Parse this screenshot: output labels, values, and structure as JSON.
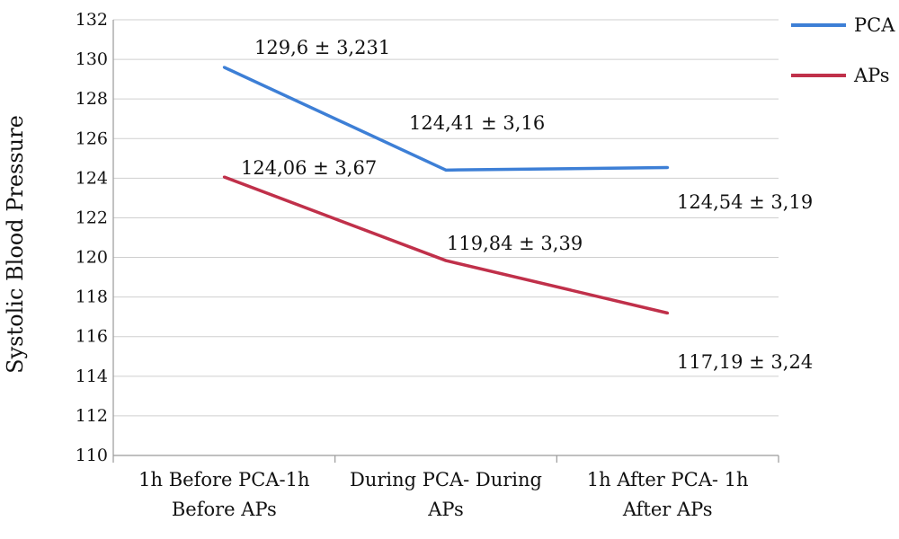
{
  "chart_data": {
    "type": "line",
    "title": "",
    "xlabel": "",
    "ylabel": "Systolic Blood Pressure",
    "ylim": [
      110,
      132
    ],
    "ytick_step": 2,
    "grid": true,
    "legend_position": "top-right",
    "categories": [
      [
        "1h Before PCA-1h",
        "Before APs"
      ],
      [
        "During PCA- During",
        "APs"
      ],
      [
        "1h After PCA- 1h",
        "After APs"
      ]
    ],
    "series": [
      {
        "name": "PCA",
        "color": "#3d7fd6",
        "values": [
          129.6,
          124.41,
          124.54
        ],
        "labels": [
          "129,6 ± 3,231",
          "124,41 ± 3,16",
          "124,54 ± 3,19"
        ]
      },
      {
        "name": "APs",
        "color": "#c0304a",
        "values": [
          124.06,
          119.84,
          117.19
        ],
        "labels": [
          "124,06 ± 3,67",
          "119,84 ± 3,39",
          "117,19 ± 3,24"
        ]
      }
    ]
  }
}
